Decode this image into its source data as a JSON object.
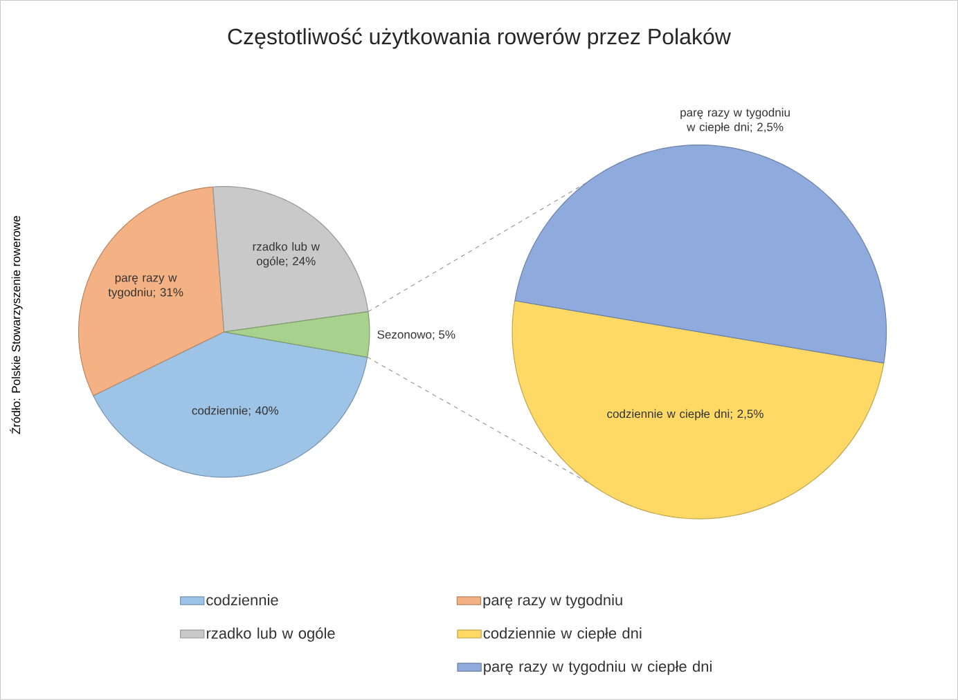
{
  "chart_data": [
    {
      "type": "pie",
      "title": "Częstotliwość  użytkowania  rowerów  przez  Polaków",
      "categories": [
        "codziennie",
        "parę razy w tygodniu",
        "rzadko lub w ogóle",
        null
      ],
      "values": [
        40,
        31,
        24,
        5
      ],
      "colors": [
        "#9dc3e6",
        "#f4b183",
        "#c9c9c9",
        "#a9d18e"
      ],
      "value_labels": [
        "codziennie; 40%",
        "parę razy w tygodniu; 31%",
        "rzadko lub w ogóle; 24%",
        "Sezonowo; 5%"
      ],
      "annotations": [
        "Źródło: Polskie Stowarzyszenie rowerowe"
      ],
      "legend": "bottom"
    },
    {
      "type": "pie",
      "categories": [
        "codziennie w ciepłe dni",
        "parę razy w tygodniu w ciepłe dni"
      ],
      "values": [
        2.5,
        2.5
      ],
      "colors": [
        "#ffd966",
        "#8faadc"
      ],
      "value_labels": [
        "codziennie w ciepłe dni; 2,5%",
        "parę razy w tygodniu w ciepłe dni; 2,5%"
      ],
      "legend": "bottom"
    }
  ]
}
